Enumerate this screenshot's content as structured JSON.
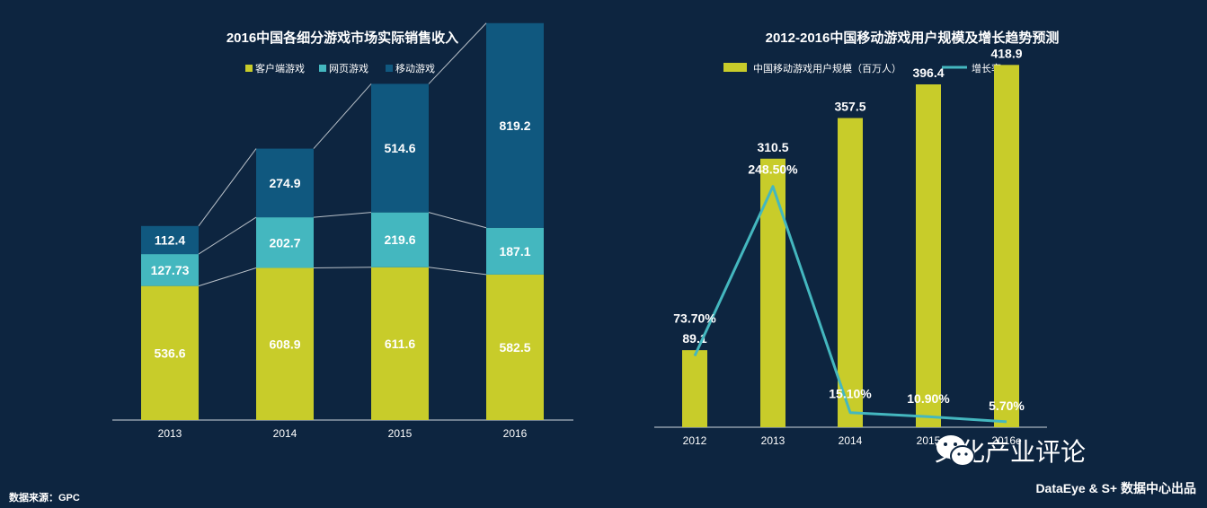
{
  "left_chart": {
    "title": "2016中国各细分游戏市场实际销售收入",
    "legend": [
      {
        "label": "客户端游戏",
        "color": "#c8cc2a"
      },
      {
        "label": "网页游戏",
        "color": "#44b7bf"
      },
      {
        "label": "移动游戏",
        "color": "#10587f"
      }
    ]
  },
  "right_chart": {
    "title": "2012-2016中国移动游戏用户规模及增长趋势预测",
    "legend": [
      {
        "label": "中国移动游戏用户规模（百万人）",
        "color": "#c8cc2a"
      },
      {
        "label": "增长率",
        "color": "#44b7bf"
      }
    ]
  },
  "chart_data": [
    {
      "type": "bar",
      "stacked": true,
      "title": "2016中国各细分游戏市场实际销售收入",
      "categories": [
        "2013",
        "2014",
        "2015",
        "2016"
      ],
      "series": [
        {
          "name": "客户端游戏",
          "values": [
            536.6,
            608.9,
            611.6,
            582.5
          ],
          "labels": [
            "536.6",
            "608.9",
            "611.6",
            "582.5"
          ],
          "color": "#c8cc2a"
        },
        {
          "name": "网页游戏",
          "values": [
            127.73,
            202.7,
            219.6,
            187.1
          ],
          "labels": [
            "127.73",
            "202.7",
            "219.6",
            "187.1"
          ],
          "color": "#44b7bf"
        },
        {
          "name": "移动游戏",
          "values": [
            112.4,
            274.9,
            514.6,
            819.2
          ],
          "labels": [
            "112.4",
            "274.9",
            "514.6",
            "819.2"
          ],
          "color": "#10587f"
        }
      ],
      "ylim": [
        0,
        1588
      ]
    },
    {
      "type": "bar",
      "title": "2012-2016中国移动游戏用户规模及增长趋势预测",
      "categories": [
        "2012",
        "2013",
        "2014",
        "2015",
        "2016e"
      ],
      "series": [
        {
          "name": "中国移动游戏用户规模（百万人）",
          "values": [
            89.1,
            310.5,
            357.5,
            396.4,
            418.9
          ],
          "labels": [
            "89.1",
            "310.5",
            "357.5",
            "396.4",
            "418.9"
          ],
          "color": "#c8cc2a"
        },
        {
          "name": "增长率",
          "type": "line",
          "values": [
            73.7,
            248.5,
            15.1,
            10.9,
            5.7
          ],
          "labels": [
            "73.70%",
            "248.50%",
            "15.10%",
            "10.90%",
            "5.70%"
          ],
          "color": "#44b7bf"
        }
      ],
      "ylim": [
        0,
        440
      ],
      "y2lim": [
        0,
        390
      ]
    }
  ],
  "footer": {
    "source": "数据来源：GPC",
    "credit": "DataEye & S+ 数据中心出品",
    "brand": "文化产业评论"
  }
}
